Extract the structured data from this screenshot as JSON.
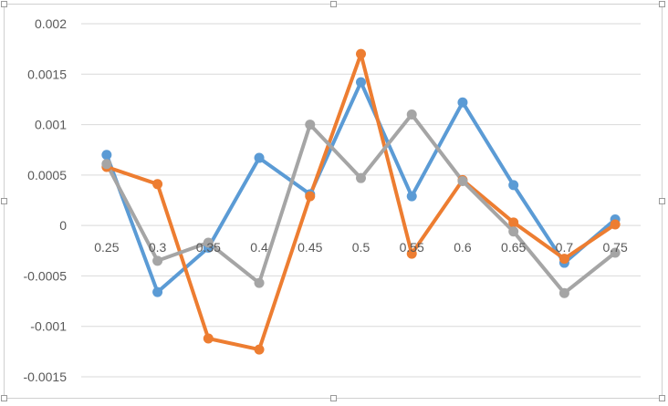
{
  "chart_data": {
    "type": "line",
    "title": "",
    "xlabel": "",
    "ylabel": "",
    "x": [
      "0.25",
      "0.3",
      "0.35",
      "0.4",
      "0.45",
      "0.5",
      "0.55",
      "0.6",
      "0.65",
      "0.7",
      "0.75"
    ],
    "ylim": [
      -0.0015,
      0.002
    ],
    "yticks": [
      {
        "value": 0.002,
        "label": "0.002"
      },
      {
        "value": 0.0015,
        "label": "0.0015"
      },
      {
        "value": 0.001,
        "label": "0.001"
      },
      {
        "value": 0.0005,
        "label": "0.0005"
      },
      {
        "value": 0,
        "label": "0"
      },
      {
        "value": -0.0005,
        "label": "-0.0005"
      },
      {
        "value": -0.001,
        "label": "-0.001"
      },
      {
        "value": -0.0015,
        "label": "-0.0015"
      }
    ],
    "grid": true,
    "legend": "none",
    "series": [
      {
        "color": "#5b9bd5",
        "values": [
          0.0007,
          -0.00066,
          -0.00022,
          0.00067,
          0.00031,
          0.00142,
          0.00029,
          0.00122,
          0.0004,
          -0.00037,
          6e-05
        ]
      },
      {
        "color": "#ed7d31",
        "values": [
          0.00058,
          0.00041,
          -0.00112,
          -0.00123,
          0.00029,
          0.0017,
          -0.00028,
          0.00045,
          3e-05,
          -0.00033,
          1e-05
        ]
      },
      {
        "color": "#a5a5a5",
        "values": [
          0.00061,
          -0.00035,
          -0.00017,
          -0.00057,
          0.001,
          0.00047,
          0.0011,
          0.00044,
          -6e-05,
          -0.00067,
          -0.00027
        ]
      }
    ]
  }
}
